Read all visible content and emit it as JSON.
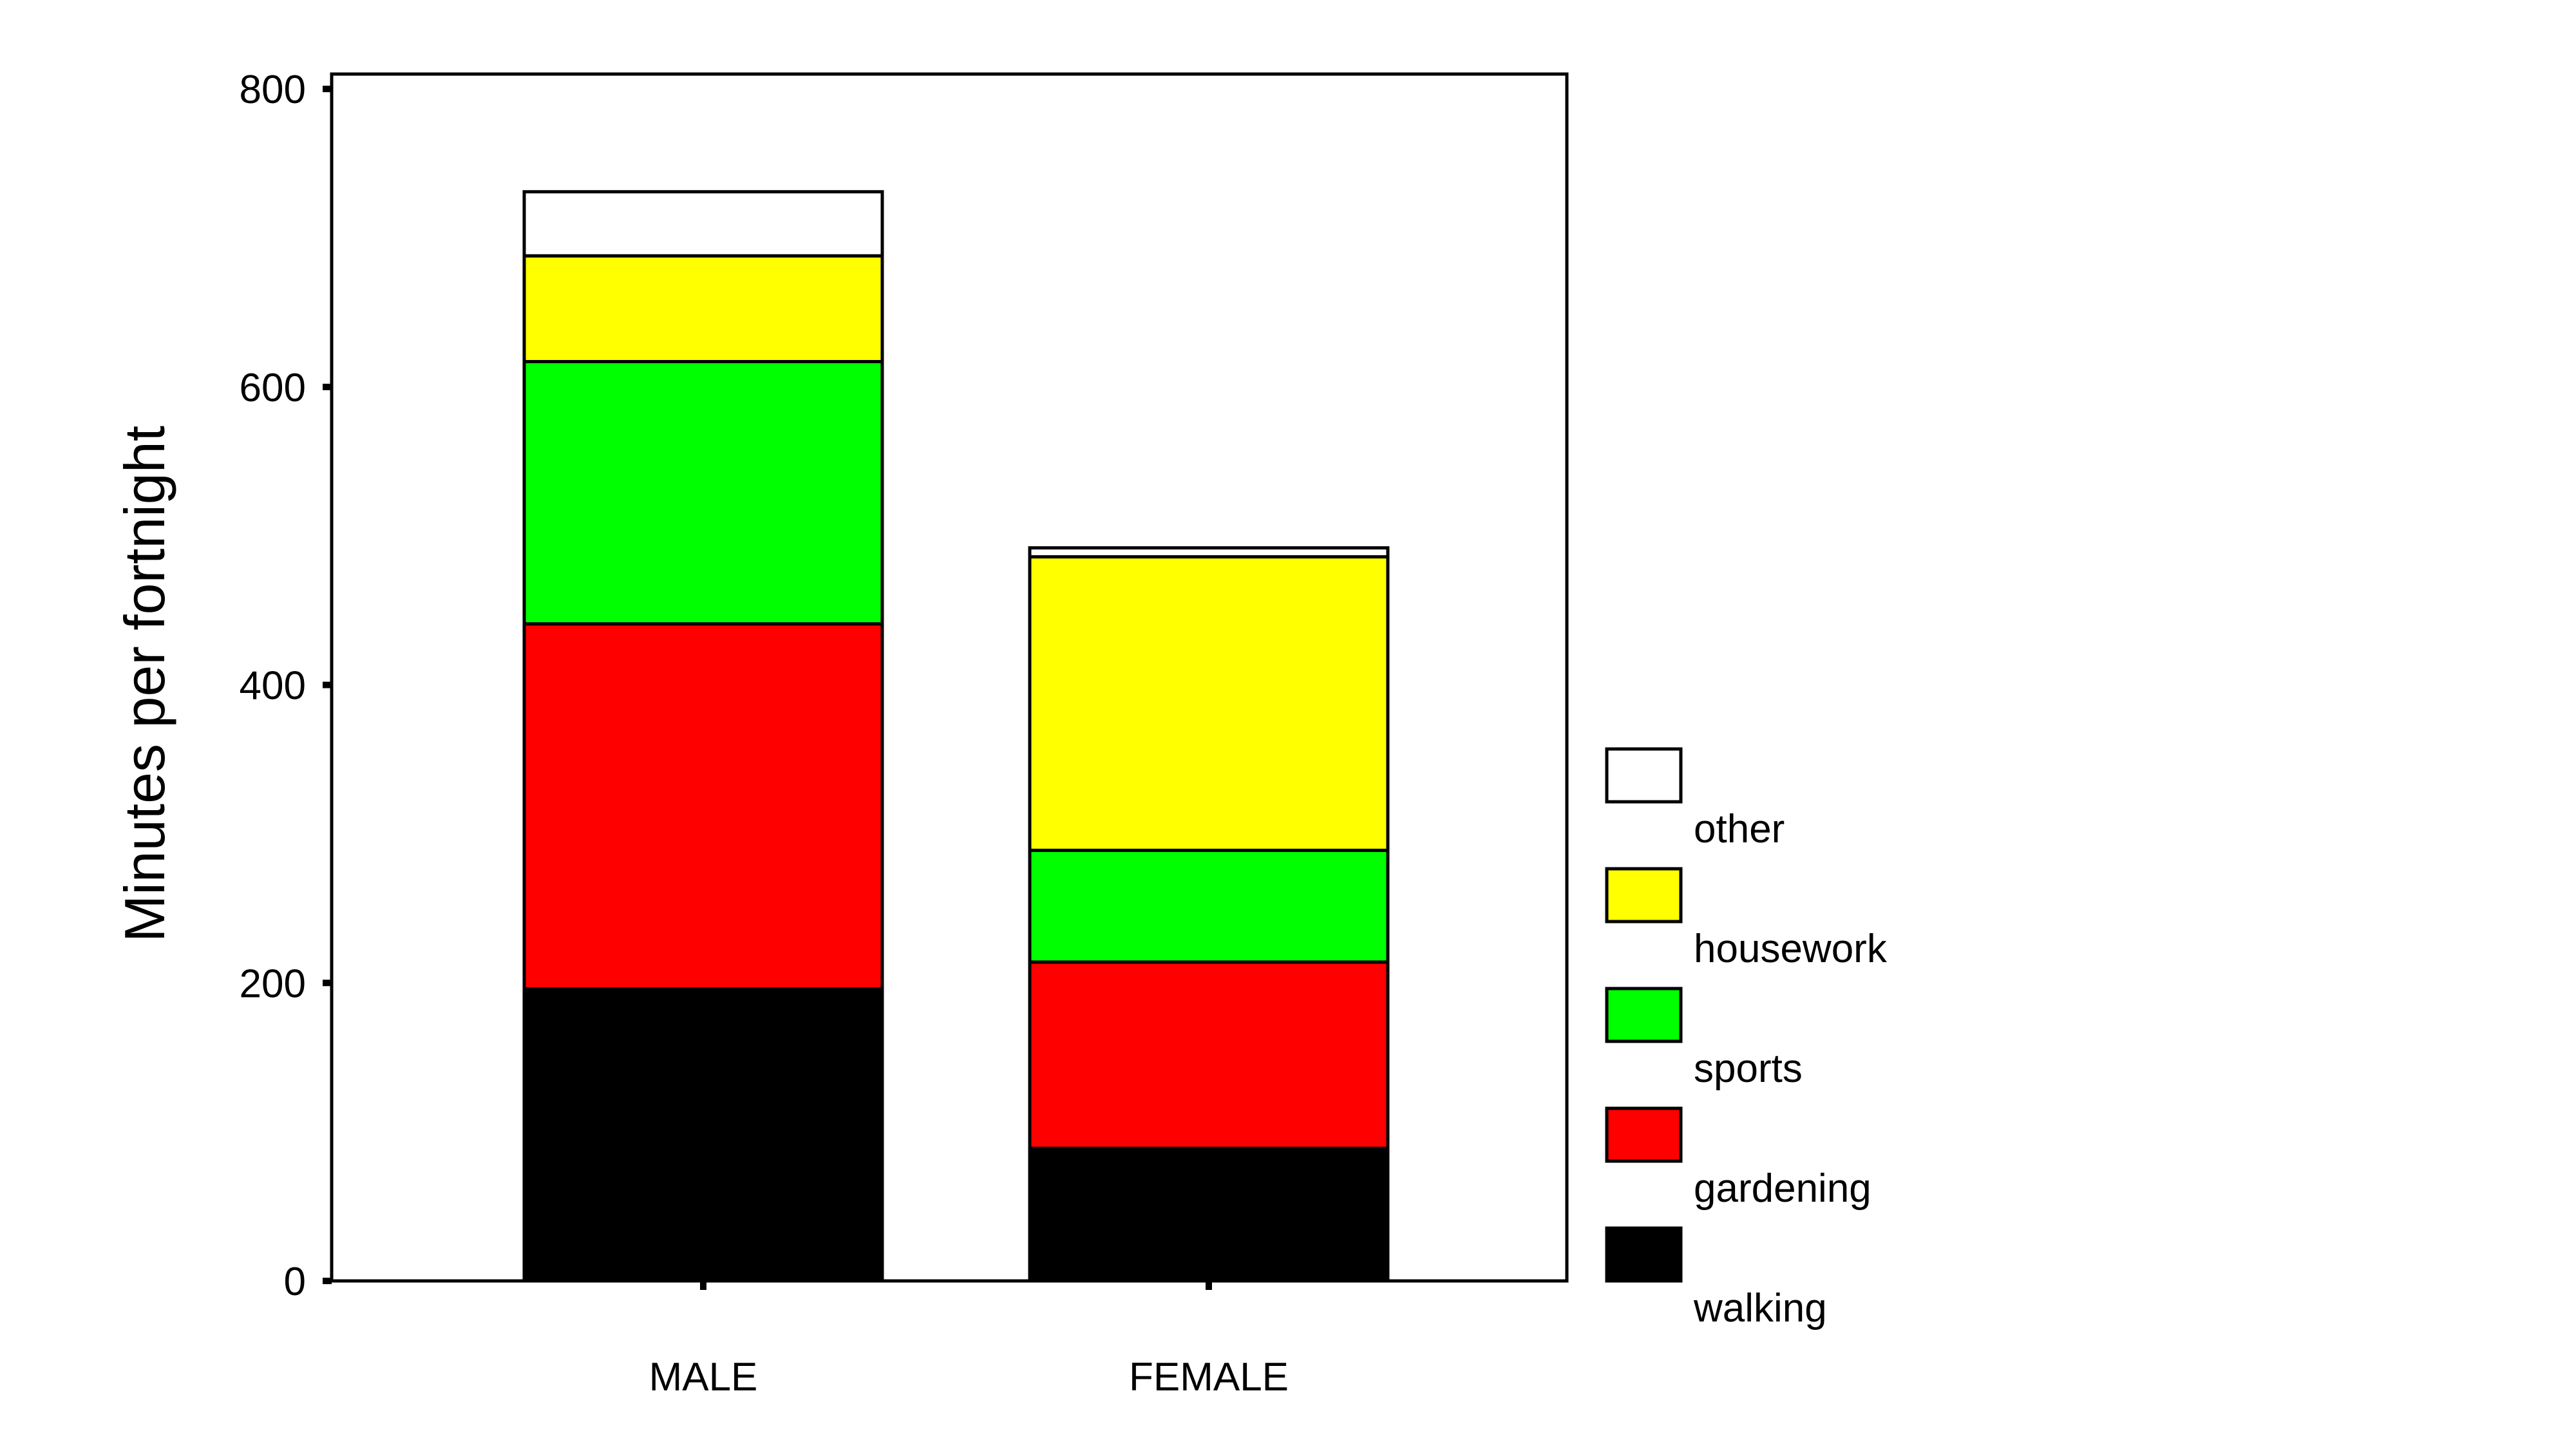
{
  "chart_data": {
    "type": "bar",
    "stacked": true,
    "categories": [
      "MALE",
      "FEMALE"
    ],
    "ylabel": "Minutes per fortnight",
    "xlabel": "",
    "ylim": [
      0,
      810
    ],
    "yticks": [
      0,
      200,
      400,
      600,
      800
    ],
    "series": [
      {
        "name": "walking",
        "color": "#000000",
        "values": [
          196,
          89
        ]
      },
      {
        "name": "gardening",
        "color": "#ff0000",
        "values": [
          245,
          125
        ]
      },
      {
        "name": "sports",
        "color": "#00ff00",
        "values": [
          176,
          75
        ]
      },
      {
        "name": "housework",
        "color": "#ffff00",
        "values": [
          71,
          197
        ]
      },
      {
        "name": "other",
        "color": "#ffffff",
        "values": [
          43,
          6
        ]
      }
    ],
    "legend": {
      "position": "right"
    },
    "grid": false
  }
}
